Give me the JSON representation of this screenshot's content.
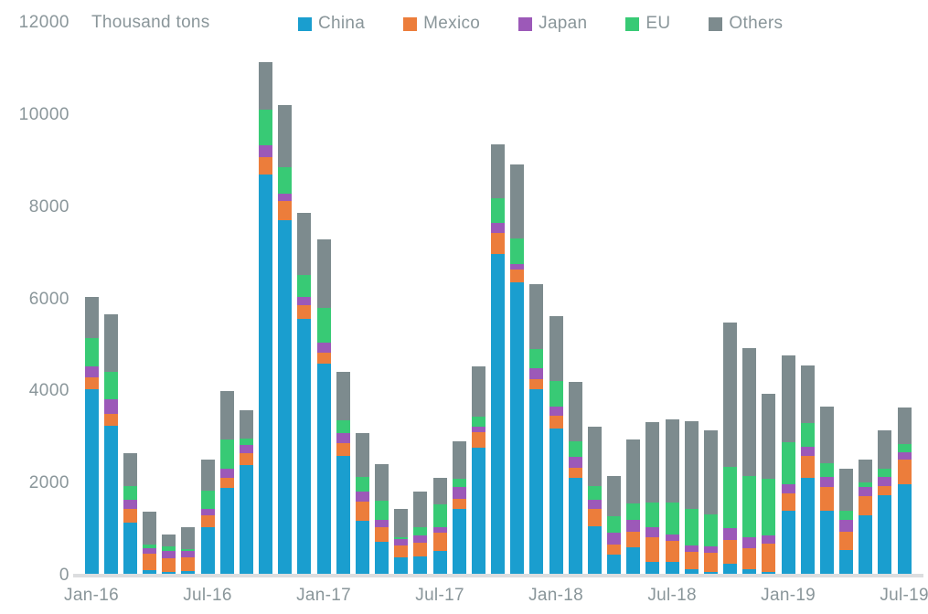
{
  "chart_data": {
    "type": "bar",
    "stacked": true,
    "title": "Thousand tons",
    "ylabel": "Thousand tons",
    "xlabel": "",
    "ylim": [
      0,
      12000
    ],
    "yticks": [
      0,
      2000,
      4000,
      6000,
      8000,
      10000,
      12000
    ],
    "x_tick_labels": [
      "Jan-16",
      "Jul-16",
      "Jan-17",
      "Jul-17",
      "Jan-18",
      "Jul-18",
      "Jan-19",
      "Jul-19"
    ],
    "x_tick_every": 6,
    "grid": false,
    "legend_position": "top",
    "background": "#ffffff",
    "axis_text_color": "#8a969a",
    "axis_line_color": "#dcdddf",
    "categories": [
      "Jan-16",
      "Feb-16",
      "Mar-16",
      "Apr-16",
      "May-16",
      "Jun-16",
      "Jul-16",
      "Aug-16",
      "Sep-16",
      "Oct-16",
      "Nov-16",
      "Dec-16",
      "Jan-17",
      "Feb-17",
      "Mar-17",
      "Apr-17",
      "May-17",
      "Jun-17",
      "Jul-17",
      "Aug-17",
      "Sep-17",
      "Oct-17",
      "Nov-17",
      "Dec-17",
      "Jan-18",
      "Feb-18",
      "Mar-18",
      "Apr-18",
      "May-18",
      "Jun-18",
      "Jul-18",
      "Aug-18",
      "Sep-18",
      "Oct-18",
      "Nov-18",
      "Dec-18",
      "Jan-19",
      "Feb-19",
      "Mar-19",
      "Apr-19",
      "May-19",
      "Jun-19",
      "Jul-19"
    ],
    "series": [
      {
        "name": "China",
        "color": "#1a9ecf",
        "values": [
          4050,
          3250,
          1150,
          110,
          70,
          100,
          1060,
          1900,
          2400,
          8700,
          7720,
          5570,
          4600,
          2590,
          1180,
          730,
          400,
          420,
          535,
          1440,
          2780,
          6980,
          6370,
          4050,
          3200,
          2130,
          1070,
          450,
          610,
          300,
          300,
          130,
          80,
          250,
          130,
          80,
          1400,
          2130,
          1400,
          560,
          1310,
          1740,
          1980
        ]
      },
      {
        "name": "Mexico",
        "color": "#ec7d3b",
        "values": [
          260,
          270,
          290,
          370,
          300,
          290,
          250,
          230,
          250,
          390,
          410,
          300,
          240,
          280,
          420,
          330,
          260,
          300,
          390,
          230,
          330,
          460,
          270,
          210,
          270,
          220,
          385,
          225,
          350,
          530,
          450,
          385,
          415,
          520,
          465,
          615,
          385,
          460,
          515,
          400,
          410,
          200,
          535
        ]
      },
      {
        "name": "Japan",
        "color": "#9c59b8",
        "values": [
          230,
          300,
          210,
          110,
          170,
          140,
          140,
          200,
          190,
          260,
          170,
          170,
          210,
          220,
          220,
          150,
          130,
          145,
          135,
          250,
          120,
          210,
          120,
          250,
          200,
          220,
          200,
          250,
          240,
          220,
          140,
          145,
          130,
          270,
          230,
          180,
          200,
          200,
          230,
          245,
          200,
          195,
          170
        ]
      },
      {
        "name": "EU",
        "color": "#38ca75",
        "values": [
          620,
          610,
          290,
          85,
          95,
          45,
          390,
          620,
          140,
          760,
          570,
          480,
          760,
          280,
          330,
          420,
          45,
          190,
          480,
          190,
          225,
          550,
          560,
          410,
          560,
          345,
          280,
          365,
          370,
          540,
          700,
          780,
          695,
          1330,
          1345,
          1230,
          910,
          530,
          285,
          200,
          105,
          180,
          175
        ]
      },
      {
        "name": "Others",
        "color": "#7d8b8e",
        "values": [
          890,
          1240,
          720,
          710,
          265,
          475,
          670,
          1050,
          620,
          1040,
          1350,
          1350,
          1480,
          1060,
          945,
          790,
          610,
          765,
          590,
          810,
          1095,
          1160,
          1610,
          1400,
          1410,
          1285,
          1295,
          880,
          1390,
          1750,
          1800,
          1920,
          1840,
          3120,
          2770,
          1845,
          1880,
          1245,
          1240,
          925,
          495,
          845,
          790
        ]
      }
    ],
    "totals": [
      6050,
      5670,
      2660,
      1385,
      900,
      1050,
      2510,
      4000,
      3600,
      11150,
      10220,
      7870,
      7290,
      4430,
      3095,
      2420,
      1445,
      1820,
      2130,
      2920,
      4550,
      9360,
      8930,
      6320,
      5640,
      4200,
      3230,
      2170,
      2960,
      3340,
      3390,
      3360,
      3160,
      5490,
      4940,
      3950,
      4775,
      4565,
      3670,
      2330,
      2520,
      3160,
      3650
    ]
  }
}
